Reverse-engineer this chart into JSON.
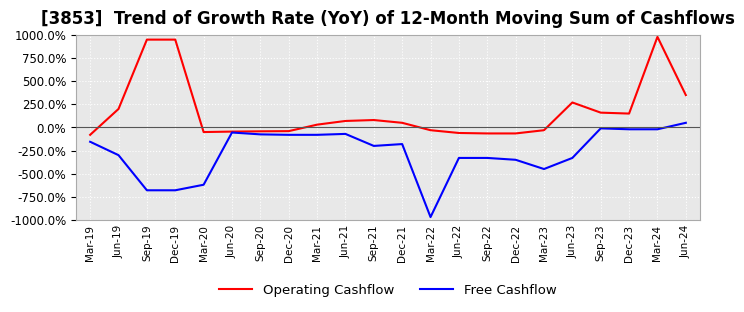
{
  "title": "[3853]  Trend of Growth Rate (YoY) of 12-Month Moving Sum of Cashflows",
  "title_fontsize": 12,
  "background_color": "#ffffff",
  "plot_bg_color": "#e8e8e8",
  "grid_color": "#ffffff",
  "ylim": [
    -1000,
    1000
  ],
  "yticks": [
    -1000,
    -750,
    -500,
    -250,
    0,
    250,
    500,
    750,
    1000
  ],
  "x_labels": [
    "Mar-19",
    "Jun-19",
    "Sep-19",
    "Dec-19",
    "Mar-20",
    "Jun-20",
    "Sep-20",
    "Dec-20",
    "Mar-21",
    "Jun-21",
    "Sep-21",
    "Dec-21",
    "Mar-22",
    "Jun-22",
    "Sep-22",
    "Dec-22",
    "Mar-23",
    "Jun-23",
    "Sep-23",
    "Dec-23",
    "Mar-24",
    "Jun-24"
  ],
  "operating_cashflow": [
    -80,
    200,
    950,
    950,
    -50,
    -45,
    -42,
    -40,
    30,
    70,
    80,
    50,
    -30,
    -60,
    -65,
    -65,
    -30,
    270,
    160,
    150,
    980,
    350
  ],
  "free_cashflow": [
    -155,
    -300,
    -680,
    -680,
    -620,
    -55,
    -75,
    -80,
    -80,
    -70,
    -200,
    -180,
    -970,
    -330,
    -330,
    -350,
    -450,
    -330,
    -10,
    -20,
    -20,
    50
  ],
  "op_color": "#ff0000",
  "fc_color": "#0000ff",
  "legend_op": "Operating Cashflow",
  "legend_fc": "Free Cashflow"
}
